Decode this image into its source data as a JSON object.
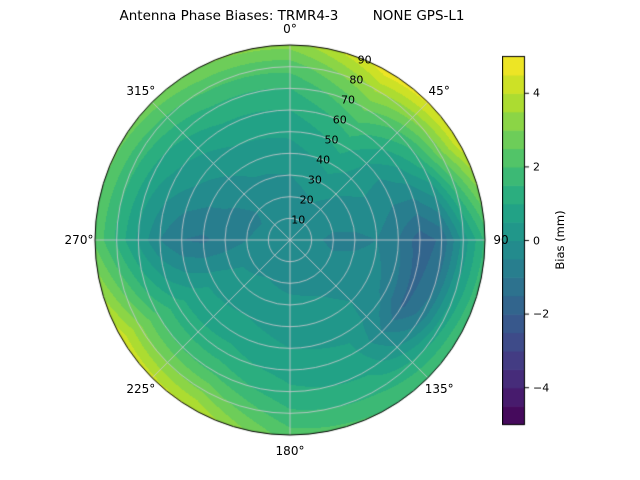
{
  "chart_data": {
    "type": "heatmap",
    "projection": "polar-contourf",
    "title": "Antenna Phase Biases: TRMR4-3        NONE GPS-L1",
    "units": "mm",
    "levels": {
      "min": -5,
      "max": 5,
      "step": 0.5
    },
    "colormap": {
      "name": "viridis",
      "stops": [
        "#440154",
        "#482475",
        "#414487",
        "#355f8d",
        "#2a788e",
        "#21918c",
        "#22a884",
        "#44bf70",
        "#7ad151",
        "#bddf26",
        "#fde725"
      ]
    },
    "grid_color": "#c9c9ce",
    "azimuth_ticks": [
      {
        "label": "0°",
        "angle": 0
      },
      {
        "label": "45°",
        "angle": 45
      },
      {
        "label": "90",
        "angle": 90
      },
      {
        "label": "135°",
        "angle": 135
      },
      {
        "label": "180°",
        "angle": 180
      },
      {
        "label": "225°",
        "angle": 225
      },
      {
        "label": "270°",
        "angle": 270
      },
      {
        "label": "315°",
        "angle": 315
      }
    ],
    "radial_ticks": {
      "angle_deg": 22.5,
      "labels": [
        {
          "label": "10",
          "value": 10
        },
        {
          "label": "20",
          "value": 20
        },
        {
          "label": "30",
          "value": 30
        },
        {
          "label": "40",
          "value": 40
        },
        {
          "label": "50",
          "value": 50
        },
        {
          "label": "60",
          "value": 60
        },
        {
          "label": "70",
          "value": 70
        },
        {
          "label": "80",
          "value": 80
        },
        {
          "label": "90",
          "value": 90
        }
      ]
    },
    "grid": {
      "azimuth_deg": [
        0,
        30,
        60,
        90,
        120,
        150,
        180,
        210,
        240,
        270,
        300,
        330
      ],
      "zenith_deg": [
        0,
        10,
        20,
        30,
        40,
        50,
        60,
        70,
        80,
        90
      ],
      "bias_mm": [
        [
          -0.2,
          -0.3,
          -0.2,
          0.0,
          0.3,
          0.6,
          1.0,
          1.5,
          2.2,
          3.2
        ],
        [
          -0.2,
          -0.2,
          0.0,
          0.3,
          0.7,
          1.2,
          1.8,
          2.6,
          3.6,
          4.8
        ],
        [
          -0.2,
          -0.3,
          -0.3,
          -0.2,
          0.0,
          -0.2,
          0.3,
          1.2,
          2.8,
          4.4
        ],
        [
          -0.2,
          -0.4,
          -0.6,
          -0.6,
          -0.5,
          -1.0,
          -1.8,
          -1.4,
          0.2,
          1.6
        ],
        [
          -0.2,
          -0.3,
          -0.4,
          -0.3,
          -0.2,
          -0.6,
          -1.6,
          -0.8,
          0.8,
          2.0
        ],
        [
          -0.2,
          -0.2,
          -0.1,
          0.0,
          0.2,
          0.4,
          0.6,
          0.9,
          1.4,
          2.0
        ],
        [
          -0.2,
          -0.2,
          -0.1,
          0.1,
          0.3,
          0.5,
          0.8,
          1.1,
          1.6,
          2.2
        ],
        [
          -0.2,
          -0.2,
          0.0,
          0.2,
          0.5,
          0.8,
          1.2,
          1.9,
          2.9,
          4.0
        ],
        [
          -0.2,
          -0.3,
          -0.1,
          0.1,
          0.4,
          0.7,
          1.2,
          2.0,
          3.1,
          4.3
        ],
        [
          -0.2,
          -0.4,
          -0.5,
          -0.8,
          -1.1,
          -1.0,
          -0.5,
          0.4,
          1.4,
          2.4
        ],
        [
          -0.2,
          -0.4,
          -0.6,
          -0.5,
          -0.3,
          0.0,
          0.4,
          0.9,
          1.7,
          2.6
        ],
        [
          -0.2,
          -0.3,
          -0.3,
          -0.1,
          0.2,
          0.5,
          0.9,
          1.4,
          2.1,
          3.0
        ]
      ]
    },
    "colorbar": {
      "label": "Bias (mm)",
      "ticks": [
        {
          "label": "−4",
          "value": -4
        },
        {
          "label": "−2",
          "value": -2
        },
        {
          "label": "0",
          "value": 0
        },
        {
          "label": "2",
          "value": 2
        },
        {
          "label": "4",
          "value": 4
        }
      ]
    }
  }
}
